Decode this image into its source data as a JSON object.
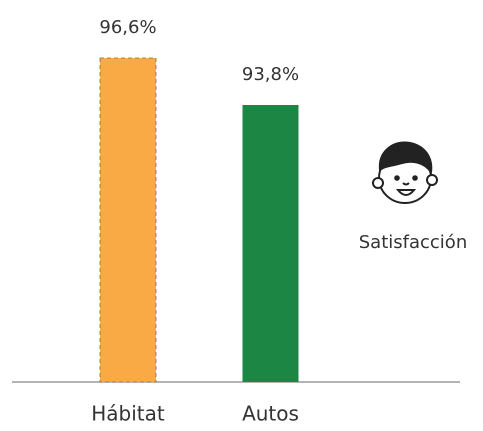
{
  "chart_data": {
    "type": "bar",
    "categories": [
      "Hábitat",
      "Autos"
    ],
    "values": [
      96.6,
      93.8
    ],
    "value_labels": [
      "96,6%",
      "93,8%"
    ],
    "colors": [
      "#f9aa45",
      "#1c8745"
    ],
    "ylim": [
      77.3,
      98
    ],
    "annotation": "Satisfacción"
  }
}
